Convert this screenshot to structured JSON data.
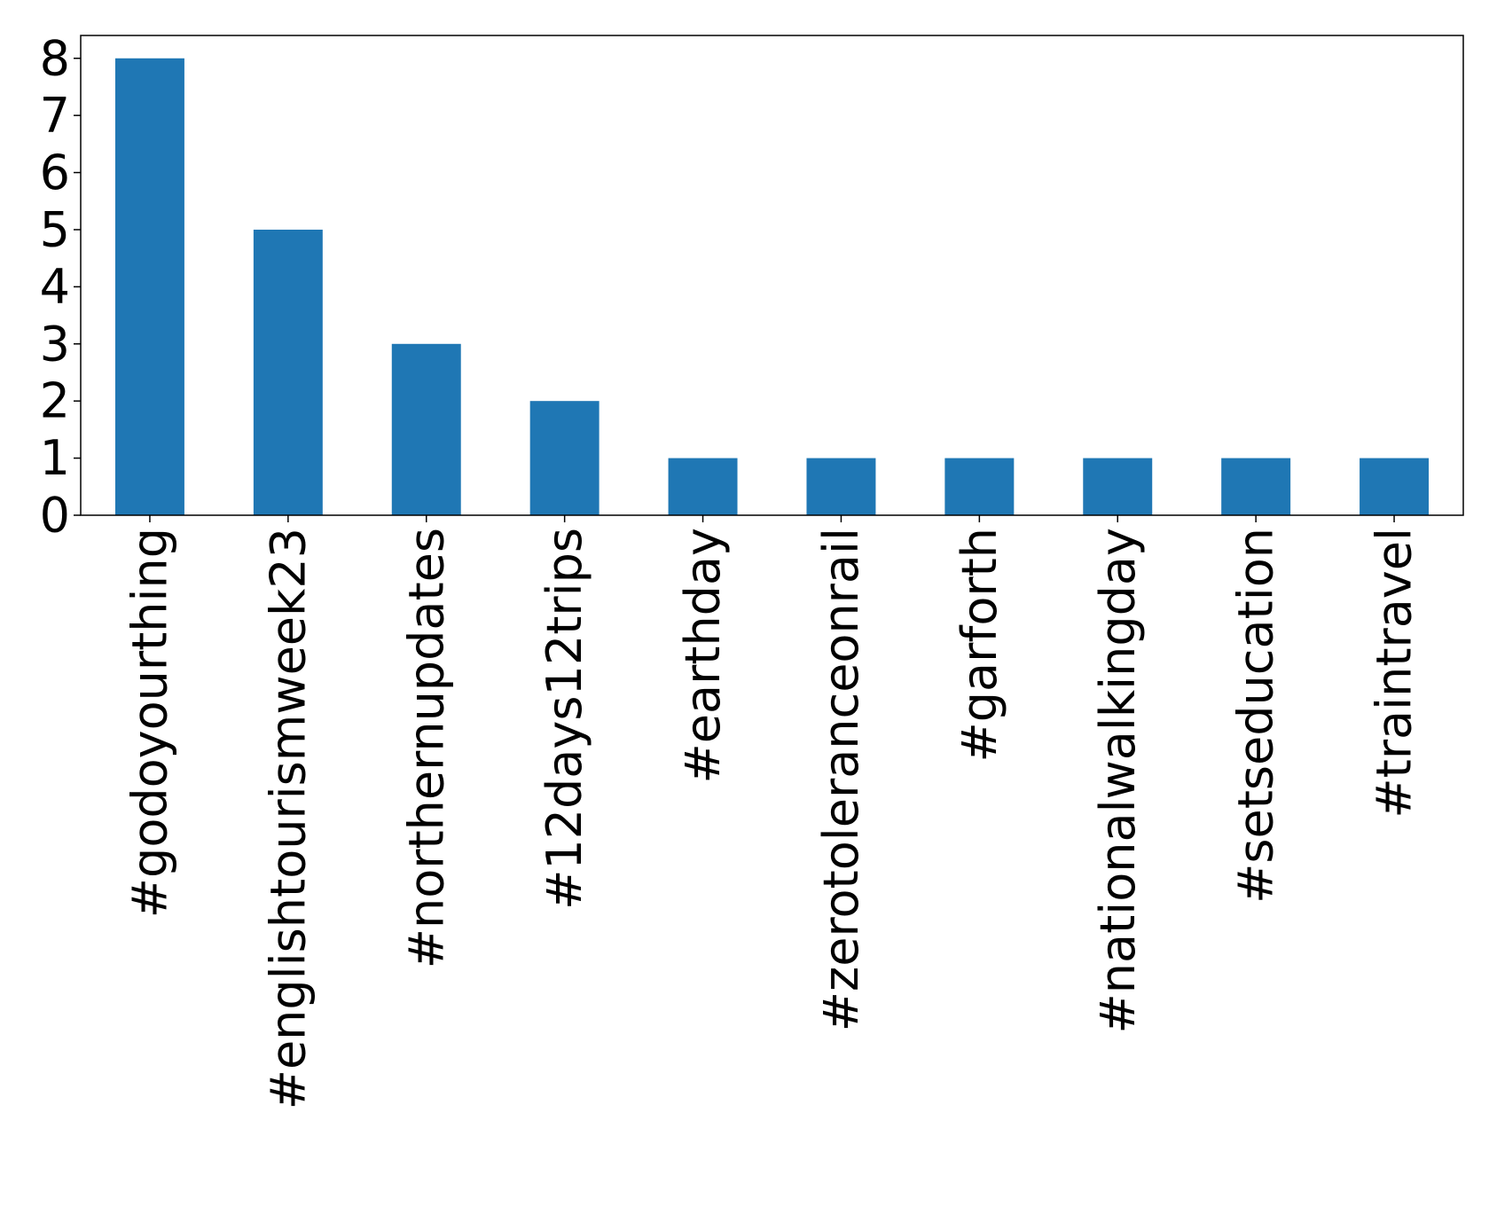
{
  "chart_data": {
    "type": "bar",
    "title": "",
    "xlabel": "",
    "ylabel": "",
    "categories": [
      "#godoyourthing",
      "#englishtourismweek23",
      "#northernupdates",
      "#12days12trips",
      "#earthday",
      "#zerotoleranceonrail",
      "#garforth",
      "#nationalwalkingday",
      "#setseducation",
      "#traintravel"
    ],
    "values": [
      8,
      5,
      3,
      2,
      1,
      1,
      1,
      1,
      1,
      1
    ],
    "ylim": [
      0,
      8.4
    ],
    "yticks": [
      0,
      1,
      2,
      3,
      4,
      5,
      6,
      7,
      8
    ],
    "bar_color": "#1f77b4",
    "grid": false,
    "legend": "none"
  }
}
